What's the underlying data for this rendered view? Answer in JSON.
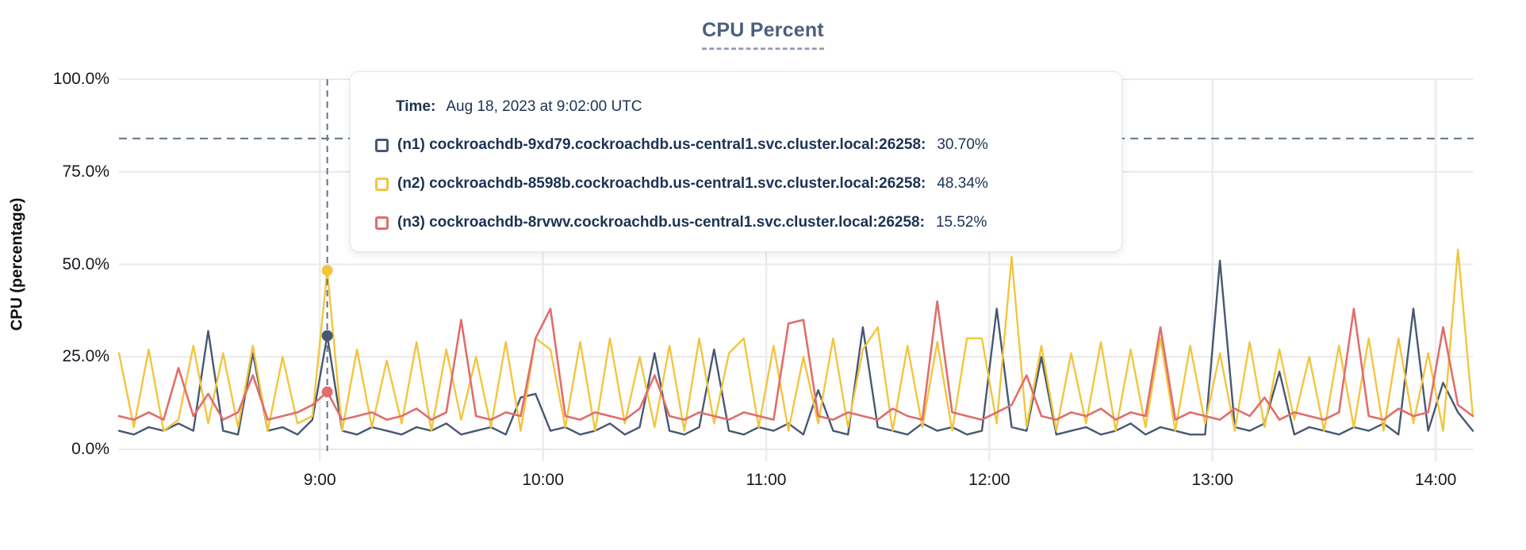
{
  "title": {
    "text": "CPU Percent"
  },
  "y_axis_title": "CPU (percentage)",
  "tooltip": {
    "time_label": "Time:",
    "time_value": "Aug 18, 2023 at 9:02:00 UTC",
    "series": [
      {
        "name": "(n1) cockroachdb-9xd79.cockroachdb.us-central1.svc.cluster.local:26258:",
        "value": "30.70%",
        "color": "#475872"
      },
      {
        "name": "(n2) cockroachdb-8598b.cockroachdb.us-central1.svc.cluster.local:26258:",
        "value": "48.34%",
        "color": "#f2c53f"
      },
      {
        "name": "(n3) cockroachdb-8rvwv.cockroachdb.us-central1.svc.cluster.local:26258:",
        "value": "15.52%",
        "color": "#e06e6b"
      }
    ]
  },
  "colors": {
    "grid": "#e9e9ec",
    "grid_vertical": "#ececef",
    "threshold_dashed": "#5d7389",
    "crosshair_dashed": "#5d7389",
    "title_text": "#4d5e7c",
    "tooltip_text": "#1c3254"
  },
  "chart_data": {
    "type": "line",
    "title": "CPU Percent",
    "xlabel": "",
    "ylabel": "CPU (percentage)",
    "ylim": [
      0,
      100
    ],
    "grid": true,
    "legend_position": "tooltip-overlay",
    "yticks": [
      "100.0%",
      "75.0%",
      "50.0%",
      "25.0%",
      "0.0%"
    ],
    "xticks": [
      "9:00",
      "10:00",
      "11:00",
      "12:00",
      "13:00",
      "14:00"
    ],
    "x_start": "8:06",
    "x_end": "14:10",
    "x_step_minutes": 4,
    "threshold_line_pct": 84,
    "crosshair_time": "9:02",
    "highlight_index": 14,
    "series": [
      {
        "name": "(n1) cockroachdb-9xd79.cockroachdb.us-central1.svc.cluster.local:26258",
        "color": "#475872",
        "width": 2.4,
        "highlight_value": 30.7,
        "values": [
          5,
          4,
          6,
          5,
          7,
          5,
          32,
          5,
          4,
          26,
          5,
          6,
          4,
          8,
          30.7,
          5,
          4,
          6,
          5,
          4,
          6,
          5,
          7,
          4,
          5,
          6,
          4,
          14,
          15,
          5,
          6,
          4,
          5,
          7,
          4,
          6,
          26,
          5,
          4,
          6,
          27,
          5,
          4,
          6,
          5,
          7,
          4,
          16,
          5,
          4,
          33,
          6,
          5,
          4,
          7,
          5,
          6,
          4,
          5,
          38,
          6,
          5,
          25,
          4,
          5,
          6,
          4,
          5,
          7,
          4,
          6,
          5,
          4,
          4,
          51,
          6,
          5,
          7,
          21,
          4,
          6,
          5,
          4,
          6,
          5,
          7,
          4,
          38,
          5,
          18,
          10,
          5
        ]
      },
      {
        "name": "(n2) cockroachdb-8598b.cockroachdb.us-central1.svc.cluster.local:26258",
        "color": "#f2c53f",
        "width": 2.4,
        "highlight_value": 48.34,
        "values": [
          26,
          6,
          27,
          5,
          8,
          28,
          7,
          26,
          6,
          28,
          5,
          25,
          7,
          9,
          48.34,
          5,
          27,
          6,
          24,
          7,
          29,
          5,
          27,
          8,
          25,
          6,
          29,
          5,
          30,
          27,
          6,
          29,
          5,
          30,
          7,
          25,
          6,
          28,
          5,
          30,
          7,
          26,
          30,
          6,
          28,
          5,
          25,
          7,
          30,
          6,
          27,
          33,
          5,
          28,
          6,
          29,
          5,
          30,
          30,
          7,
          52,
          6,
          28,
          5,
          26,
          7,
          29,
          5,
          27,
          6,
          30,
          5,
          28,
          7,
          26,
          5,
          29,
          6,
          27,
          8,
          25,
          5,
          28,
          6,
          30,
          5,
          30,
          7,
          26,
          5,
          54,
          9
        ]
      },
      {
        "name": "(n3) cockroachdb-8rvwv.cockroachdb.us-central1.svc.cluster.local:26258",
        "color": "#e06e6b",
        "width": 2.6,
        "highlight_value": 15.52,
        "values": [
          9,
          8,
          10,
          8,
          22,
          9,
          15,
          8,
          10,
          20,
          8,
          9,
          10,
          12,
          15.52,
          8,
          9,
          10,
          8,
          9,
          11,
          8,
          10,
          35,
          9,
          8,
          10,
          9,
          30,
          38,
          9,
          8,
          10,
          9,
          8,
          11,
          20,
          9,
          8,
          10,
          9,
          8,
          10,
          9,
          8,
          34,
          35,
          9,
          8,
          10,
          9,
          8,
          11,
          9,
          8,
          40,
          10,
          9,
          8,
          10,
          12,
          20,
          9,
          8,
          10,
          9,
          11,
          8,
          10,
          9,
          33,
          8,
          10,
          9,
          8,
          11,
          9,
          14,
          8,
          10,
          9,
          8,
          10,
          38,
          9,
          8,
          11,
          9,
          10,
          33,
          12,
          9
        ]
      }
    ]
  }
}
